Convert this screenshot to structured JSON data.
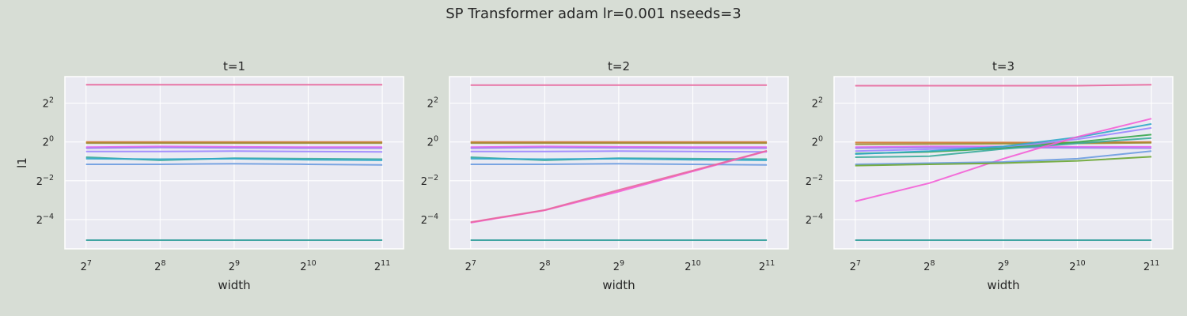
{
  "figure": {
    "suptitle": "SP Transformer adam lr=0.001 nseeds=3",
    "ylabel": "l1",
    "xlabel": "width"
  },
  "chart_data": [
    {
      "type": "line",
      "title": "t=1",
      "xlabel": "width",
      "ylabel": "l1",
      "xscale": "log2",
      "yscale": "log2",
      "x": [
        128,
        256,
        512,
        1024,
        2048
      ],
      "xticks": [
        128,
        256,
        512,
        1024,
        2048
      ],
      "xtick_labels": [
        "2^7",
        "2^8",
        "2^9",
        "2^10",
        "2^11"
      ],
      "yticks": [
        0.0625,
        0.25,
        1,
        4
      ],
      "ytick_labels": [
        "2^-4",
        "2^-2",
        "2^0",
        "2^2"
      ],
      "xlim": [
        105,
        2500
      ],
      "ylim": [
        0.022,
        10.3
      ],
      "grid": true,
      "series": [
        {
          "color": "#e8689d",
          "values": [
            7.7,
            7.7,
            7.7,
            7.7,
            7.7
          ]
        },
        {
          "color": "#d2772f",
          "values": [
            1.0,
            1.0,
            1.0,
            1.0,
            1.0
          ]
        },
        {
          "color": "#a08a2f",
          "values": [
            0.96,
            0.96,
            0.96,
            0.96,
            0.96
          ]
        },
        {
          "color": "#e55ff0",
          "values": [
            0.83,
            0.85,
            0.84,
            0.83,
            0.83
          ]
        },
        {
          "color": "#a27ff0",
          "values": [
            0.8,
            0.82,
            0.81,
            0.8,
            0.8
          ]
        },
        {
          "color": "#9b86ff",
          "values": [
            0.71,
            0.71,
            0.72,
            0.71,
            0.7
          ]
        },
        {
          "color": "#3aab9a",
          "values": [
            0.58,
            0.52,
            0.56,
            0.55,
            0.54
          ]
        },
        {
          "color": "#31a8c9",
          "values": [
            0.55,
            0.54,
            0.55,
            0.53,
            0.52
          ]
        },
        {
          "color": "#6d9ce0",
          "values": [
            0.45,
            0.45,
            0.46,
            0.45,
            0.44
          ]
        },
        {
          "color": "#2e9c99",
          "values": [
            0.03,
            0.03,
            0.03,
            0.03,
            0.03
          ]
        }
      ]
    },
    {
      "type": "line",
      "title": "t=2",
      "xlabel": "width",
      "xscale": "log2",
      "yscale": "log2",
      "x": [
        128,
        256,
        512,
        1024,
        2048
      ],
      "xticks": [
        128,
        256,
        512,
        1024,
        2048
      ],
      "xtick_labels": [
        "2^7",
        "2^8",
        "2^9",
        "2^10",
        "2^11"
      ],
      "yticks": [
        0.0625,
        0.25,
        1,
        4
      ],
      "ytick_labels": [
        "2^-4",
        "2^-2",
        "2^0",
        "2^2"
      ],
      "xlim": [
        105,
        2500
      ],
      "ylim": [
        0.022,
        10.3
      ],
      "grid": true,
      "series": [
        {
          "color": "#e8689d",
          "values": [
            7.6,
            7.6,
            7.6,
            7.6,
            7.6
          ]
        },
        {
          "color": "#d2772f",
          "values": [
            1.0,
            1.0,
            1.0,
            1.0,
            1.0
          ]
        },
        {
          "color": "#a08a2f",
          "values": [
            0.96,
            0.96,
            0.96,
            0.96,
            0.96
          ]
        },
        {
          "color": "#e55ff0",
          "values": [
            0.83,
            0.85,
            0.84,
            0.83,
            0.83
          ]
        },
        {
          "color": "#a27ff0",
          "values": [
            0.8,
            0.82,
            0.81,
            0.8,
            0.8
          ]
        },
        {
          "color": "#9b86ff",
          "values": [
            0.71,
            0.71,
            0.72,
            0.71,
            0.7
          ]
        },
        {
          "color": "#3aab9a",
          "values": [
            0.58,
            0.52,
            0.56,
            0.55,
            0.54
          ]
        },
        {
          "color": "#31a8c9",
          "values": [
            0.55,
            0.54,
            0.55,
            0.53,
            0.52
          ]
        },
        {
          "color": "#6d9ce0",
          "values": [
            0.45,
            0.45,
            0.46,
            0.45,
            0.44
          ]
        },
        {
          "color": "#f45fd6",
          "values": [
            0.056,
            0.087,
            0.17,
            0.35,
            0.72
          ]
        },
        {
          "color": "#e8689d",
          "values": [
            0.057,
            0.088,
            0.18,
            0.36,
            0.73
          ]
        },
        {
          "color": "#2e9c99",
          "values": [
            0.03,
            0.03,
            0.03,
            0.03,
            0.03
          ]
        }
      ]
    },
    {
      "type": "line",
      "title": "t=3",
      "xlabel": "width",
      "xscale": "log2",
      "yscale": "log2",
      "x": [
        128,
        256,
        512,
        1024,
        2048
      ],
      "xticks": [
        128,
        256,
        512,
        1024,
        2048
      ],
      "xtick_labels": [
        "2^7",
        "2^8",
        "2^9",
        "2^10",
        "2^11"
      ],
      "yticks": [
        0.0625,
        0.25,
        1,
        4
      ],
      "ytick_labels": [
        "2^-4",
        "2^-2",
        "2^0",
        "2^2"
      ],
      "xlim": [
        105,
        2500
      ],
      "ylim": [
        0.022,
        10.3
      ],
      "grid": true,
      "series": [
        {
          "color": "#e8689d",
          "values": [
            7.45,
            7.45,
            7.45,
            7.45,
            7.7
          ]
        },
        {
          "color": "#d2772f",
          "values": [
            0.98,
            0.98,
            0.98,
            0.98,
            1.0
          ]
        },
        {
          "color": "#a08a2f",
          "values": [
            0.92,
            0.93,
            0.94,
            0.95,
            0.97
          ]
        },
        {
          "color": "#e55ff0",
          "values": [
            0.83,
            0.85,
            0.85,
            0.84,
            0.84
          ]
        },
        {
          "color": "#a27ff0",
          "values": [
            0.8,
            0.82,
            0.82,
            0.81,
            0.8
          ]
        },
        {
          "color": "#9b86ff",
          "values": [
            0.72,
            0.77,
            0.82,
            1.1,
            1.65
          ]
        },
        {
          "color": "#39a74e",
          "values": [
            0.66,
            0.7,
            0.8,
            1.0,
            1.3
          ]
        },
        {
          "color": "#3aab9a",
          "values": [
            0.58,
            0.6,
            0.78,
            0.95,
            1.15
          ]
        },
        {
          "color": "#31a8c9",
          "values": [
            0.65,
            0.72,
            0.85,
            1.18,
            1.9
          ]
        },
        {
          "color": "#f45fd6",
          "values": [
            0.12,
            0.23,
            0.55,
            1.2,
            2.3
          ]
        },
        {
          "color": "#6d9ce0",
          "values": [
            0.45,
            0.47,
            0.49,
            0.55,
            0.72
          ]
        },
        {
          "color": "#6aa632",
          "values": [
            0.43,
            0.45,
            0.47,
            0.51,
            0.59
          ]
        },
        {
          "color": "#2e9c99",
          "values": [
            0.03,
            0.03,
            0.03,
            0.03,
            0.03
          ]
        }
      ]
    }
  ]
}
